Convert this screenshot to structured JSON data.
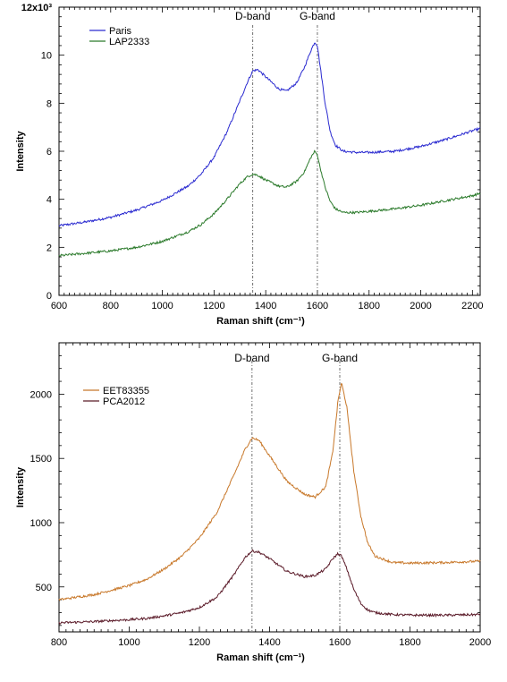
{
  "chart_data": [
    {
      "type": "line",
      "xlabel": "Raman shift (cm⁻¹)",
      "ylabel": "Intensity",
      "y_multiplier_label": "12x10³",
      "xlim": [
        600,
        2230
      ],
      "ylim": [
        0,
        12
      ],
      "xticks": [
        600,
        800,
        1000,
        1200,
        1400,
        1600,
        1800,
        2000,
        2200
      ],
      "yticks": [
        0,
        2,
        4,
        6,
        8,
        10
      ],
      "legend_position": "top-left",
      "reference_lines": [
        {
          "label": "D-band",
          "x": 1350
        },
        {
          "label": "G-band",
          "x": 1600
        }
      ],
      "series": [
        {
          "name": "Paris",
          "color": "#2a2ad0",
          "x": [
            600,
            700,
            800,
            900,
            1000,
            1100,
            1150,
            1200,
            1250,
            1300,
            1330,
            1350,
            1370,
            1400,
            1450,
            1480,
            1520,
            1550,
            1575,
            1590,
            1600,
            1610,
            1630,
            1650,
            1670,
            1700,
            1750,
            1800,
            1900,
            2000,
            2100,
            2200,
            2230
          ],
          "y": [
            2.9,
            3.05,
            3.25,
            3.55,
            3.95,
            4.55,
            5.05,
            5.75,
            6.8,
            8.1,
            8.9,
            9.35,
            9.4,
            9.1,
            8.6,
            8.5,
            8.85,
            9.5,
            10.2,
            10.55,
            10.4,
            9.6,
            8.0,
            6.8,
            6.25,
            6.0,
            5.95,
            5.95,
            6.0,
            6.2,
            6.5,
            6.85,
            6.95
          ]
        },
        {
          "name": "LAP2333",
          "color": "#2b7a2b",
          "x": [
            600,
            700,
            800,
            900,
            1000,
            1100,
            1150,
            1200,
            1250,
            1300,
            1330,
            1350,
            1370,
            1400,
            1450,
            1480,
            1520,
            1550,
            1575,
            1590,
            1600,
            1610,
            1630,
            1650,
            1670,
            1700,
            1750,
            1800,
            1900,
            2000,
            2100,
            2200,
            2230
          ],
          "y": [
            1.65,
            1.75,
            1.85,
            2.0,
            2.25,
            2.65,
            2.95,
            3.4,
            4.0,
            4.65,
            4.95,
            5.05,
            5.0,
            4.8,
            4.55,
            4.5,
            4.75,
            5.15,
            5.75,
            6.0,
            5.85,
            5.35,
            4.5,
            3.9,
            3.6,
            3.45,
            3.45,
            3.5,
            3.6,
            3.75,
            3.95,
            4.15,
            4.25
          ]
        }
      ]
    },
    {
      "type": "line",
      "xlabel": "Raman shift (cm⁻¹)",
      "ylabel": "Intensity",
      "xlim": [
        800,
        2000
      ],
      "ylim": [
        150,
        2400
      ],
      "xticks": [
        800,
        1000,
        1200,
        1400,
        1600,
        1800,
        2000
      ],
      "yticks": [
        500,
        1000,
        1500,
        2000
      ],
      "legend_position": "top-left",
      "reference_lines": [
        {
          "label": "D-band",
          "x": 1350
        },
        {
          "label": "G-band",
          "x": 1600
        }
      ],
      "series": [
        {
          "name": "EET83355",
          "color": "#c8782a",
          "x": [
            800,
            900,
            1000,
            1050,
            1100,
            1150,
            1200,
            1250,
            1300,
            1330,
            1350,
            1370,
            1400,
            1450,
            1500,
            1530,
            1560,
            1580,
            1595,
            1605,
            1620,
            1640,
            1660,
            1680,
            1700,
            1750,
            1800,
            1900,
            2000
          ],
          "y": [
            400,
            440,
            510,
            560,
            640,
            740,
            880,
            1080,
            1380,
            1570,
            1660,
            1640,
            1520,
            1320,
            1220,
            1200,
            1280,
            1550,
            1950,
            2090,
            1900,
            1400,
            1050,
            840,
            740,
            690,
            685,
            690,
            700
          ]
        },
        {
          "name": "PCA2012",
          "color": "#5a1a28",
          "x": [
            800,
            900,
            1000,
            1050,
            1100,
            1150,
            1200,
            1250,
            1300,
            1330,
            1350,
            1370,
            1400,
            1450,
            1500,
            1530,
            1560,
            1580,
            1595,
            1605,
            1620,
            1640,
            1660,
            1680,
            1700,
            1750,
            1800,
            1900,
            2000
          ],
          "y": [
            220,
            230,
            245,
            255,
            275,
            300,
            340,
            420,
            600,
            730,
            780,
            770,
            720,
            620,
            580,
            590,
            640,
            720,
            760,
            740,
            640,
            480,
            370,
            320,
            300,
            285,
            280,
            280,
            285
          ]
        }
      ]
    }
  ]
}
